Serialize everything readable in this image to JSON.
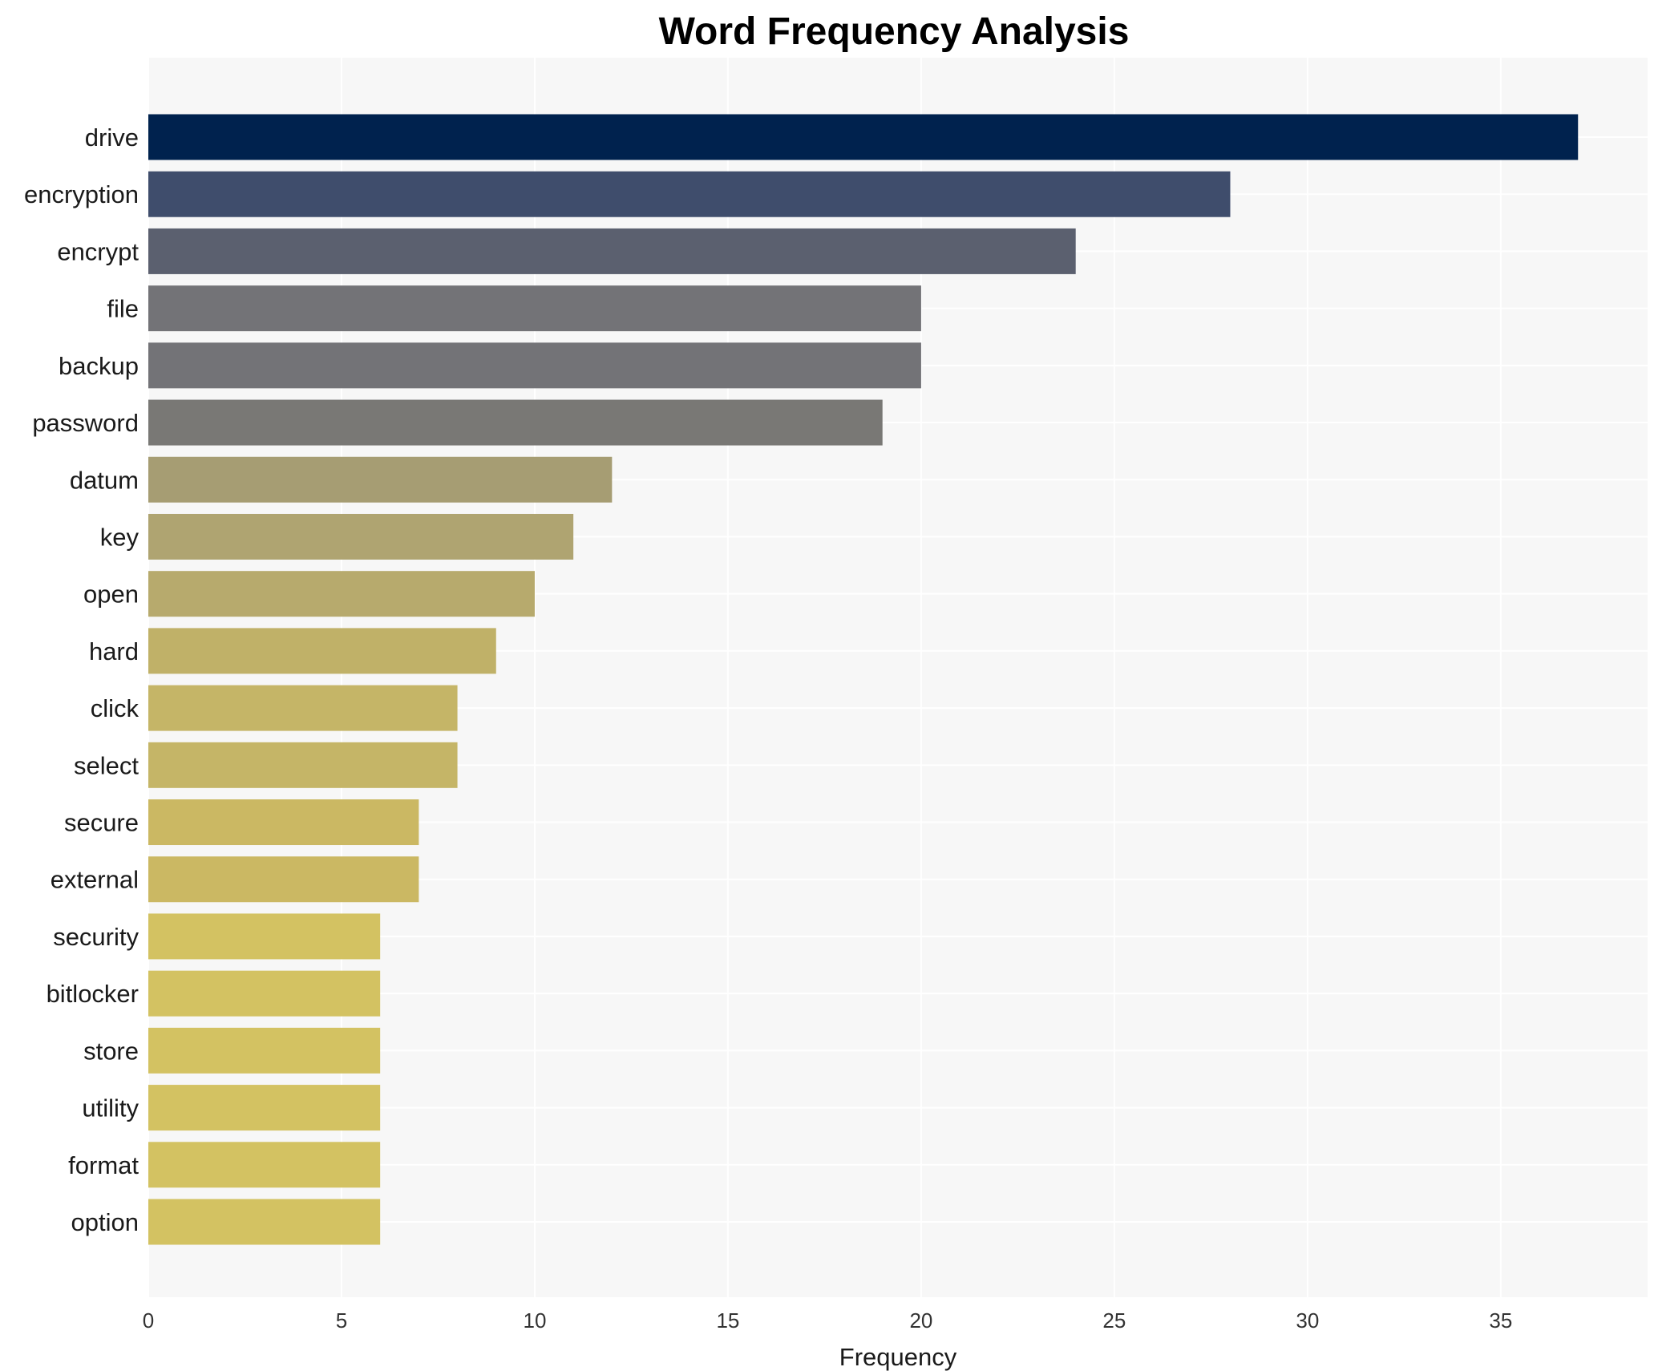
{
  "chart_data": {
    "type": "bar",
    "orientation": "horizontal",
    "title": "Word Frequency Analysis",
    "xlabel": "Frequency",
    "ylabel": "",
    "xlim": [
      0,
      38.8
    ],
    "xticks": [
      0,
      5,
      10,
      15,
      20,
      25,
      30,
      35
    ],
    "grid": true,
    "legend": "none",
    "categories": [
      "drive",
      "encryption",
      "encrypt",
      "file",
      "backup",
      "password",
      "datum",
      "key",
      "open",
      "hard",
      "click",
      "select",
      "secure",
      "external",
      "security",
      "bitlocker",
      "store",
      "utility",
      "format",
      "option"
    ],
    "values": [
      37,
      28,
      24,
      20,
      20,
      19,
      12,
      11,
      10,
      9,
      8,
      8,
      7,
      7,
      6,
      6,
      6,
      6,
      6,
      6
    ],
    "colors": [
      "#00224e",
      "#3f4d6c",
      "#5b606f",
      "#737377",
      "#737377",
      "#797875",
      "#a69d73",
      "#afa471",
      "#b7aa6d",
      "#c0b168",
      "#c5b567",
      "#c5b567",
      "#cbb863",
      "#cbb863",
      "#d3c262",
      "#d3c262",
      "#d3c262",
      "#d3c262",
      "#d3c262",
      "#d3c262"
    ],
    "plot_background": "#f7f7f7",
    "grid_color": "#ffffff"
  }
}
